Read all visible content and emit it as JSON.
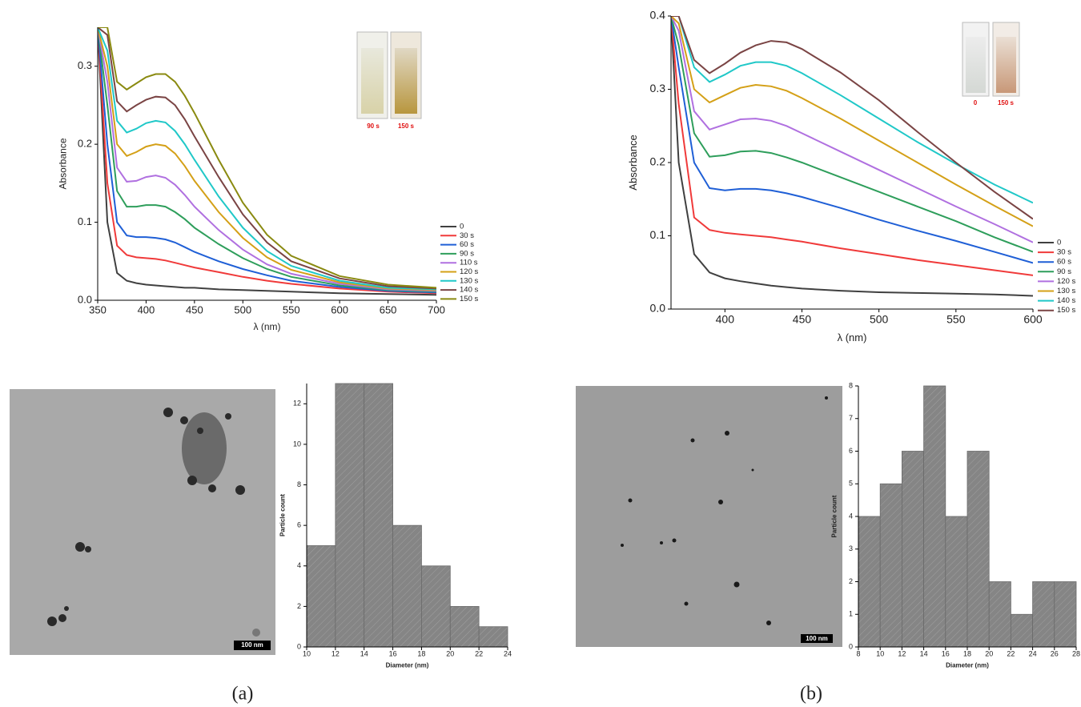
{
  "chart_data": [
    {
      "type": "line",
      "xlabel": "λ (nm)",
      "ylabel": "Absorbance",
      "x": [
        350,
        360,
        370,
        380,
        390,
        400,
        410,
        420,
        430,
        440,
        450,
        475,
        500,
        525,
        550,
        600,
        650,
        700
      ],
      "xlim": [
        350,
        700
      ],
      "xticks": [
        350,
        400,
        450,
        500,
        550,
        600,
        650,
        700
      ],
      "ylim": [
        0,
        0.35
      ],
      "yticks": [
        {
          "value": 0,
          "label": "0.0"
        },
        0.1,
        0.2,
        0.3
      ],
      "series": [
        {
          "name": "0",
          "color": "#404040",
          "values": [
            0.35,
            0.1,
            0.035,
            0.025,
            0.022,
            0.02,
            0.019,
            0.018,
            0.017,
            0.016,
            0.016,
            0.014,
            0.013,
            0.012,
            0.011,
            0.009,
            0.008,
            0.007
          ]
        },
        {
          "name": "30 s",
          "color": "#f03a3a",
          "values": [
            0.35,
            0.15,
            0.07,
            0.058,
            0.055,
            0.054,
            0.053,
            0.051,
            0.048,
            0.045,
            0.042,
            0.036,
            0.03,
            0.025,
            0.021,
            0.015,
            0.011,
            0.009
          ]
        },
        {
          "name": "60 s",
          "color": "#1f5fd6",
          "values": [
            0.35,
            0.2,
            0.1,
            0.083,
            0.081,
            0.081,
            0.08,
            0.078,
            0.074,
            0.068,
            0.062,
            0.05,
            0.04,
            0.032,
            0.025,
            0.017,
            0.012,
            0.01
          ]
        },
        {
          "name": "90 s",
          "color": "#2e9e5b",
          "values": [
            0.35,
            0.25,
            0.14,
            0.12,
            0.12,
            0.122,
            0.122,
            0.12,
            0.113,
            0.104,
            0.093,
            0.072,
            0.054,
            0.04,
            0.03,
            0.019,
            0.013,
            0.011
          ]
        },
        {
          "name": "110 s",
          "color": "#b070e0",
          "values": [
            0.35,
            0.28,
            0.17,
            0.152,
            0.153,
            0.158,
            0.16,
            0.157,
            0.148,
            0.135,
            0.12,
            0.09,
            0.065,
            0.046,
            0.034,
            0.021,
            0.014,
            0.012
          ]
        },
        {
          "name": "120 s",
          "color": "#d4a017",
          "values": [
            0.35,
            0.3,
            0.2,
            0.185,
            0.19,
            0.197,
            0.2,
            0.198,
            0.188,
            0.172,
            0.153,
            0.113,
            0.08,
            0.055,
            0.039,
            0.023,
            0.015,
            0.013
          ]
        },
        {
          "name": "130 s",
          "color": "#20c8c8",
          "values": [
            0.35,
            0.32,
            0.23,
            0.215,
            0.22,
            0.227,
            0.23,
            0.228,
            0.217,
            0.2,
            0.18,
            0.133,
            0.093,
            0.063,
            0.044,
            0.025,
            0.016,
            0.014
          ]
        },
        {
          "name": "140 s",
          "color": "#7a4444",
          "values": [
            0.35,
            0.34,
            0.255,
            0.242,
            0.25,
            0.257,
            0.261,
            0.26,
            0.25,
            0.232,
            0.21,
            0.158,
            0.11,
            0.074,
            0.05,
            0.028,
            0.018,
            0.015
          ]
        },
        {
          "name": "150 s",
          "color": "#8a8a10",
          "values": [
            0.35,
            0.35,
            0.28,
            0.27,
            0.278,
            0.286,
            0.29,
            0.29,
            0.28,
            0.262,
            0.24,
            0.18,
            0.125,
            0.084,
            0.057,
            0.031,
            0.02,
            0.016
          ]
        }
      ]
    },
    {
      "type": "line",
      "xlabel": "λ (nm)",
      "ylabel": "Absorbance",
      "x": [
        365,
        370,
        380,
        390,
        400,
        410,
        420,
        430,
        440,
        450,
        475,
        500,
        525,
        550,
        575,
        600
      ],
      "xlim": [
        365,
        600
      ],
      "xticks": [
        400,
        450,
        500,
        550,
        600
      ],
      "ylim": [
        0,
        0.4
      ],
      "yticks": [
        {
          "value": 0,
          "label": "0.0"
        },
        0.1,
        0.2,
        0.3,
        0.4
      ],
      "series": [
        {
          "name": "0",
          "color": "#404040",
          "values": [
            0.4,
            0.2,
            0.075,
            0.05,
            0.042,
            0.038,
            0.035,
            0.032,
            0.03,
            0.028,
            0.025,
            0.023,
            0.022,
            0.021,
            0.02,
            0.018
          ]
        },
        {
          "name": "30 s",
          "color": "#f03a3a",
          "values": [
            0.4,
            0.28,
            0.125,
            0.108,
            0.104,
            0.102,
            0.1,
            0.098,
            0.095,
            0.092,
            0.083,
            0.075,
            0.067,
            0.06,
            0.053,
            0.046
          ]
        },
        {
          "name": "60 s",
          "color": "#1f5fd6",
          "values": [
            0.4,
            0.33,
            0.2,
            0.165,
            0.162,
            0.164,
            0.164,
            0.162,
            0.158,
            0.153,
            0.138,
            0.122,
            0.107,
            0.093,
            0.078,
            0.063
          ]
        },
        {
          "name": "90 s",
          "color": "#2e9e5b",
          "values": [
            0.4,
            0.36,
            0.24,
            0.208,
            0.21,
            0.215,
            0.216,
            0.213,
            0.207,
            0.2,
            0.18,
            0.16,
            0.14,
            0.12,
            0.098,
            0.078
          ]
        },
        {
          "name": "120 s",
          "color": "#b070e0",
          "values": [
            0.4,
            0.38,
            0.27,
            0.245,
            0.252,
            0.259,
            0.26,
            0.257,
            0.25,
            0.24,
            0.215,
            0.19,
            0.165,
            0.14,
            0.116,
            0.091
          ]
        },
        {
          "name": "130 s",
          "color": "#d4a017",
          "values": [
            0.4,
            0.39,
            0.3,
            0.282,
            0.292,
            0.302,
            0.306,
            0.304,
            0.298,
            0.288,
            0.26,
            0.23,
            0.2,
            0.17,
            0.141,
            0.113
          ]
        },
        {
          "name": "140 s",
          "color": "#20c8c8",
          "values": [
            0.4,
            0.4,
            0.33,
            0.31,
            0.32,
            0.332,
            0.337,
            0.337,
            0.332,
            0.322,
            0.292,
            0.26,
            0.228,
            0.198,
            0.17,
            0.145
          ]
        },
        {
          "name": "150 s",
          "color": "#7a4444",
          "values": [
            0.4,
            0.4,
            0.34,
            0.322,
            0.335,
            0.35,
            0.36,
            0.366,
            0.364,
            0.355,
            0.323,
            0.285,
            0.242,
            0.2,
            0.16,
            0.123
          ]
        }
      ]
    },
    {
      "type": "histogram",
      "xlabel": "Diameter (nm)",
      "ylabel": "Particle count",
      "color": "#858585",
      "bins": [
        10,
        12,
        14,
        16,
        18,
        20,
        22,
        24
      ],
      "values": [
        5,
        13,
        13,
        6,
        4,
        2,
        1
      ],
      "xlim": [
        10,
        24
      ],
      "xticks": [
        10,
        12,
        14,
        16,
        18,
        20,
        22,
        24
      ],
      "ylim": [
        0,
        13
      ],
      "yticks": [
        0,
        2,
        4,
        6,
        8,
        10,
        12
      ]
    },
    {
      "type": "histogram",
      "xlabel": "Diameter (nm)",
      "ylabel": "Particle count",
      "color": "#858585",
      "bins": [
        8,
        10,
        12,
        14,
        16,
        18,
        20,
        22,
        24,
        26,
        28
      ],
      "values": [
        4,
        5,
        6,
        8,
        4,
        6,
        2,
        1,
        2,
        2
      ],
      "xlim": [
        8,
        28
      ],
      "xticks": [
        8,
        10,
        12,
        14,
        16,
        18,
        20,
        22,
        24,
        26,
        28
      ],
      "ylim": [
        0,
        8
      ],
      "yticks": [
        0,
        1,
        2,
        3,
        4,
        5,
        6,
        7,
        8
      ]
    }
  ],
  "insets": [
    [
      "90 s",
      "150 s"
    ],
    [
      "0",
      "150 s"
    ]
  ],
  "scale_bars": [
    "100 nm",
    "100 nm"
  ],
  "panel_labels": [
    "(a)",
    "(b)"
  ]
}
